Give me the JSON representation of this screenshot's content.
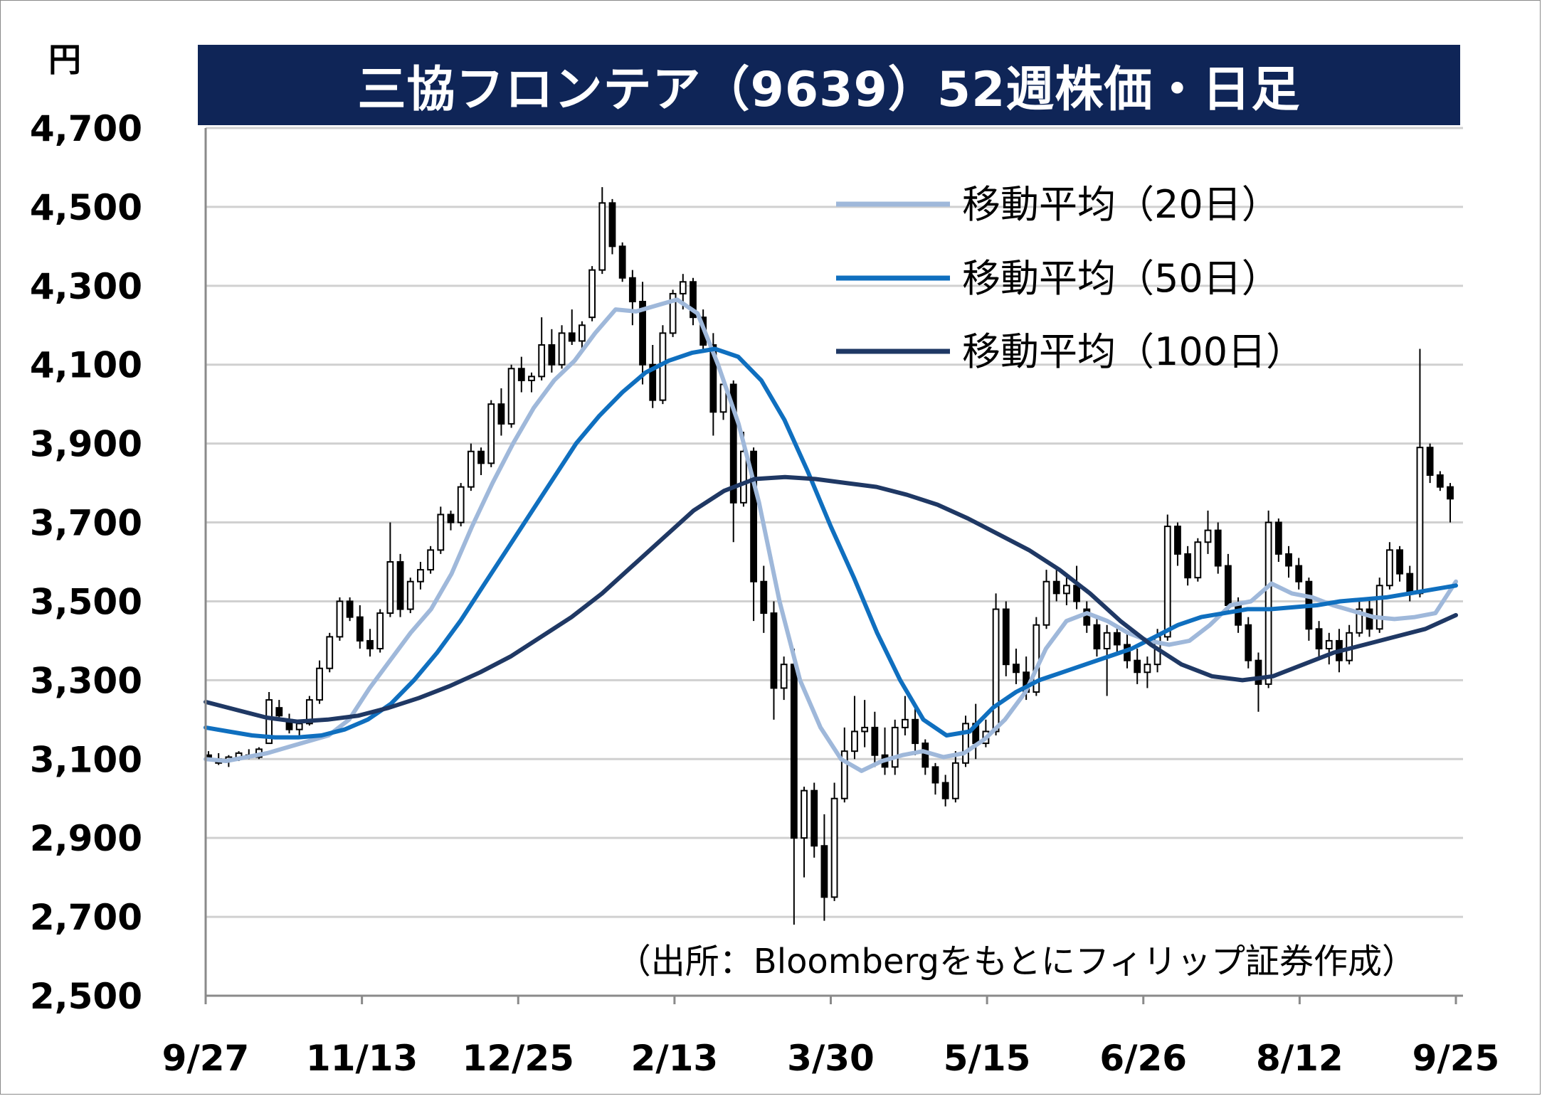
{
  "unit_label": "円",
  "title": "三協フロンテア（9639）52週株価・日足",
  "source_note": "（出所：Bloombergをもとにフィリップ証券作成）",
  "colors": {
    "title_bg": "#0f2557",
    "ma20": "#9fb8da",
    "ma50": "#0f6fbf",
    "ma100": "#1f3864",
    "candle": "#000000",
    "grid": "#d0d0d0"
  },
  "chart_data": {
    "type": "candlestick",
    "title": "三協フロンテア（9639）52週株価・日足",
    "ylabel": "円",
    "ylim": [
      2500,
      4700
    ],
    "yticks": [
      "4,700",
      "4,500",
      "4,300",
      "4,100",
      "3,900",
      "3,700",
      "3,500",
      "3,300",
      "3,100",
      "2,900",
      "2,700",
      "2,500"
    ],
    "ytick_values": [
      4700,
      4500,
      4300,
      4100,
      3900,
      3700,
      3500,
      3300,
      3100,
      2900,
      2700,
      2500
    ],
    "xticks": [
      "9/27",
      "11/13",
      "12/25",
      "2/13",
      "3/30",
      "5/15",
      "6/26",
      "8/12",
      "9/25"
    ],
    "legend_position": "top-right",
    "grid": true,
    "series": [
      {
        "name": "移動平均（20日）",
        "values": [
          3100,
          3095,
          3105,
          3115,
          3130,
          3145,
          3160,
          3200,
          3280,
          3350,
          3420,
          3480,
          3570,
          3690,
          3800,
          3900,
          3990,
          4060,
          4110,
          4180,
          4240,
          4235,
          4250,
          4265,
          4230,
          4100,
          3950,
          3750,
          3500,
          3300,
          3180,
          3100,
          3070,
          3095,
          3110,
          3120,
          3105,
          3115,
          3150,
          3200,
          3270,
          3380,
          3450,
          3470,
          3450,
          3420,
          3400,
          3390,
          3400,
          3440,
          3490,
          3500,
          3545,
          3520,
          3510,
          3490,
          3475,
          3460,
          3455,
          3460,
          3470,
          3550
        ]
      },
      {
        "name": "移動平均（50日）",
        "values": [
          3180,
          3170,
          3160,
          3155,
          3155,
          3160,
          3175,
          3200,
          3240,
          3300,
          3370,
          3450,
          3540,
          3630,
          3720,
          3810,
          3900,
          3970,
          4030,
          4080,
          4110,
          4130,
          4140,
          4120,
          4060,
          3960,
          3830,
          3690,
          3560,
          3420,
          3300,
          3200,
          3160,
          3170,
          3230,
          3270,
          3300,
          3320,
          3340,
          3360,
          3380,
          3410,
          3440,
          3460,
          3470,
          3480,
          3480,
          3485,
          3490,
          3500,
          3505,
          3510,
          3520,
          3530,
          3540
        ]
      },
      {
        "name": "移動平均（100日）",
        "values": [
          3245,
          3225,
          3205,
          3195,
          3200,
          3210,
          3230,
          3255,
          3285,
          3320,
          3360,
          3410,
          3460,
          3520,
          3590,
          3660,
          3730,
          3780,
          3810,
          3815,
          3810,
          3800,
          3790,
          3770,
          3745,
          3710,
          3670,
          3630,
          3580,
          3520,
          3450,
          3390,
          3340,
          3310,
          3300,
          3310,
          3340,
          3370,
          3390,
          3410,
          3430,
          3465
        ]
      }
    ],
    "candles": [
      [
        3110,
        3120,
        3095,
        3100
      ],
      [
        3100,
        3115,
        3085,
        3090
      ],
      [
        3095,
        3110,
        3080,
        3105
      ],
      [
        3100,
        3120,
        3095,
        3115
      ],
      [
        3110,
        3125,
        3100,
        3105
      ],
      [
        3105,
        3130,
        3100,
        3125
      ],
      [
        3140,
        3270,
        3140,
        3250
      ],
      [
        3230,
        3250,
        3200,
        3210
      ],
      [
        3200,
        3215,
        3165,
        3175
      ],
      [
        3175,
        3200,
        3160,
        3190
      ],
      [
        3190,
        3260,
        3185,
        3250
      ],
      [
        3250,
        3350,
        3240,
        3330
      ],
      [
        3330,
        3420,
        3320,
        3410
      ],
      [
        3410,
        3510,
        3400,
        3500
      ],
      [
        3500,
        3510,
        3450,
        3460
      ],
      [
        3460,
        3490,
        3380,
        3400
      ],
      [
        3400,
        3430,
        3360,
        3380
      ],
      [
        3380,
        3480,
        3370,
        3470
      ],
      [
        3470,
        3700,
        3460,
        3600
      ],
      [
        3600,
        3620,
        3460,
        3480
      ],
      [
        3480,
        3560,
        3470,
        3550
      ],
      [
        3550,
        3600,
        3530,
        3580
      ],
      [
        3580,
        3640,
        3570,
        3630
      ],
      [
        3630,
        3740,
        3620,
        3720
      ],
      [
        3720,
        3730,
        3680,
        3700
      ],
      [
        3700,
        3800,
        3690,
        3790
      ],
      [
        3790,
        3900,
        3780,
        3880
      ],
      [
        3880,
        3890,
        3820,
        3850
      ],
      [
        3850,
        4010,
        3840,
        4000
      ],
      [
        4000,
        4040,
        3920,
        3950
      ],
      [
        3950,
        4100,
        3940,
        4090
      ],
      [
        4090,
        4120,
        4030,
        4060
      ],
      [
        4060,
        4080,
        4030,
        4070
      ],
      [
        4070,
        4220,
        4060,
        4150
      ],
      [
        4150,
        4190,
        4080,
        4100
      ],
      [
        4100,
        4200,
        4090,
        4180
      ],
      [
        4180,
        4240,
        4150,
        4160
      ],
      [
        4160,
        4210,
        4140,
        4200
      ],
      [
        4220,
        4350,
        4210,
        4340
      ],
      [
        4340,
        4550,
        4330,
        4510
      ],
      [
        4510,
        4520,
        4380,
        4400
      ],
      [
        4400,
        4410,
        4310,
        4320
      ],
      [
        4320,
        4340,
        4200,
        4260
      ],
      [
        4260,
        4310,
        4050,
        4100
      ],
      [
        4100,
        4150,
        3990,
        4010
      ],
      [
        4010,
        4200,
        4000,
        4180
      ],
      [
        4180,
        4290,
        4170,
        4280
      ],
      [
        4280,
        4330,
        4240,
        4310
      ],
      [
        4310,
        4320,
        4200,
        4220
      ],
      [
        4220,
        4240,
        4130,
        4150
      ],
      [
        4150,
        4180,
        3920,
        3980
      ],
      [
        3980,
        4060,
        3960,
        4050
      ],
      [
        4050,
        4060,
        3650,
        3750
      ],
      [
        3750,
        3930,
        3740,
        3880
      ],
      [
        3880,
        3890,
        3450,
        3550
      ],
      [
        3550,
        3590,
        3420,
        3470
      ],
      [
        3470,
        3500,
        3200,
        3280
      ],
      [
        3280,
        3360,
        3250,
        3340
      ],
      [
        3340,
        3380,
        2680,
        2900
      ],
      [
        2900,
        3030,
        2800,
        3020
      ],
      [
        3020,
        3040,
        2850,
        2880
      ],
      [
        2880,
        2960,
        2690,
        2750
      ],
      [
        2750,
        3040,
        2740,
        3000
      ],
      [
        3000,
        3180,
        2990,
        3120
      ],
      [
        3120,
        3260,
        3100,
        3170
      ],
      [
        3170,
        3250,
        3130,
        3180
      ],
      [
        3180,
        3220,
        3080,
        3110
      ],
      [
        3110,
        3180,
        3060,
        3080
      ],
      [
        3080,
        3200,
        3060,
        3180
      ],
      [
        3180,
        3260,
        3160,
        3200
      ],
      [
        3200,
        3230,
        3110,
        3140
      ],
      [
        3140,
        3150,
        3060,
        3080
      ],
      [
        3080,
        3090,
        3010,
        3040
      ],
      [
        3040,
        3060,
        2980,
        3000
      ],
      [
        3000,
        3120,
        2990,
        3090
      ],
      [
        3090,
        3210,
        3080,
        3190
      ],
      [
        3190,
        3240,
        3100,
        3140
      ],
      [
        3140,
        3200,
        3130,
        3170
      ],
      [
        3170,
        3520,
        3160,
        3480
      ],
      [
        3480,
        3500,
        3310,
        3340
      ],
      [
        3340,
        3380,
        3290,
        3320
      ],
      [
        3320,
        3360,
        3250,
        3270
      ],
      [
        3270,
        3460,
        3260,
        3440
      ],
      [
        3440,
        3580,
        3430,
        3550
      ],
      [
        3550,
        3590,
        3500,
        3520
      ],
      [
        3520,
        3560,
        3490,
        3540
      ],
      [
        3540,
        3590,
        3480,
        3500
      ],
      [
        3480,
        3500,
        3420,
        3440
      ],
      [
        3440,
        3460,
        3360,
        3380
      ],
      [
        3380,
        3440,
        3260,
        3420
      ],
      [
        3420,
        3440,
        3370,
        3390
      ],
      [
        3390,
        3420,
        3330,
        3350
      ],
      [
        3350,
        3380,
        3290,
        3320
      ],
      [
        3320,
        3360,
        3280,
        3340
      ],
      [
        3340,
        3430,
        3320,
        3410
      ],
      [
        3410,
        3720,
        3400,
        3690
      ],
      [
        3690,
        3700,
        3590,
        3620
      ],
      [
        3620,
        3640,
        3540,
        3560
      ],
      [
        3560,
        3660,
        3550,
        3650
      ],
      [
        3650,
        3730,
        3620,
        3680
      ],
      [
        3680,
        3700,
        3570,
        3590
      ],
      [
        3590,
        3620,
        3470,
        3490
      ],
      [
        3490,
        3510,
        3420,
        3440
      ],
      [
        3440,
        3460,
        3330,
        3350
      ],
      [
        3350,
        3370,
        3220,
        3290
      ],
      [
        3290,
        3730,
        3280,
        3700
      ],
      [
        3700,
        3710,
        3600,
        3620
      ],
      [
        3620,
        3640,
        3560,
        3590
      ],
      [
        3590,
        3610,
        3530,
        3550
      ],
      [
        3550,
        3560,
        3400,
        3430
      ],
      [
        3430,
        3450,
        3360,
        3380
      ],
      [
        3380,
        3420,
        3340,
        3400
      ],
      [
        3400,
        3430,
        3320,
        3350
      ],
      [
        3350,
        3440,
        3340,
        3420
      ],
      [
        3420,
        3500,
        3410,
        3480
      ],
      [
        3480,
        3510,
        3410,
        3430
      ],
      [
        3430,
        3560,
        3420,
        3540
      ],
      [
        3540,
        3650,
        3530,
        3630
      ],
      [
        3630,
        3640,
        3550,
        3570
      ],
      [
        3570,
        3590,
        3500,
        3520
      ],
      [
        3520,
        4140,
        3510,
        3890
      ],
      [
        3890,
        3900,
        3800,
        3820
      ],
      [
        3820,
        3830,
        3780,
        3790
      ],
      [
        3790,
        3800,
        3700,
        3760
      ]
    ]
  },
  "legend": [
    {
      "label": "移動平均（20日）",
      "color": "#9fb8da"
    },
    {
      "label": "移動平均（50日）",
      "color": "#0f6fbf"
    },
    {
      "label": "移動平均（100日）",
      "color": "#1f3864"
    }
  ]
}
